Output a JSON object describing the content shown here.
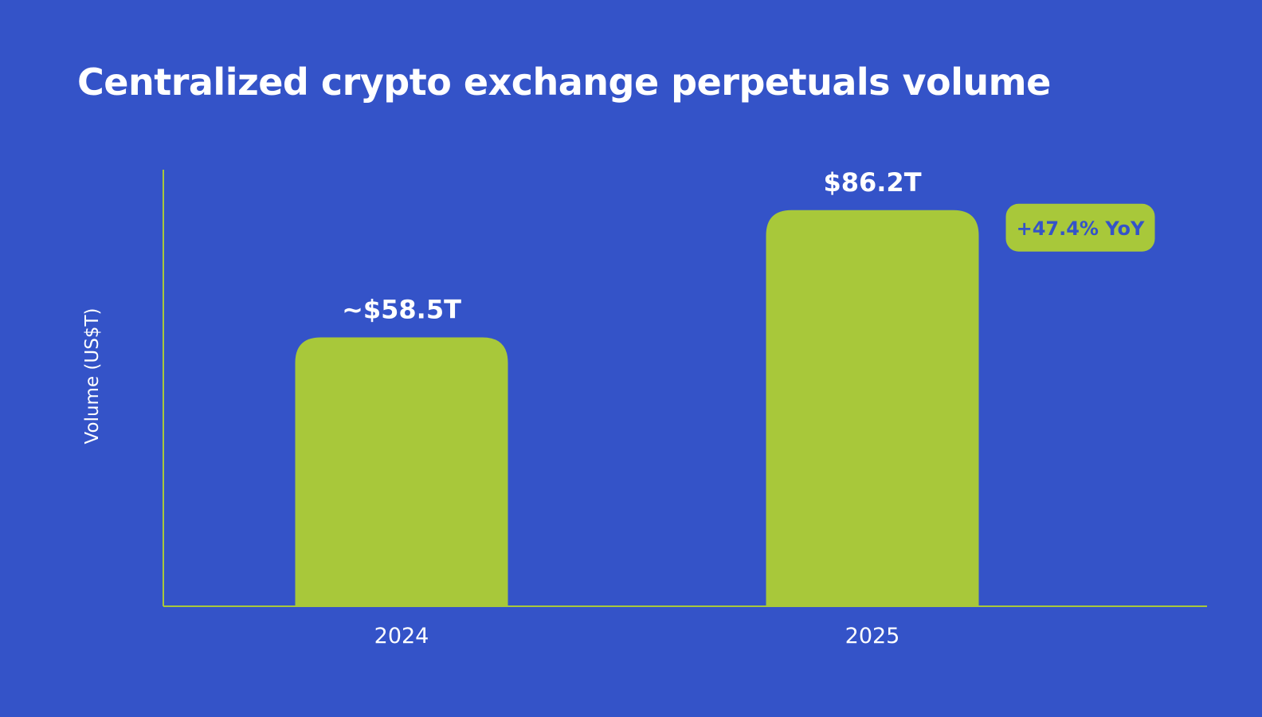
{
  "chart_data": {
    "type": "bar",
    "title": "Centralized crypto exchange perpetuals volume",
    "ylabel": "Volume (US$T)",
    "xlabel": "",
    "categories": [
      "2024",
      "2025"
    ],
    "values": [
      58.5,
      86.2
    ],
    "data_labels": [
      "~$58.5T",
      "$86.2T"
    ],
    "ylim": [
      0,
      95
    ],
    "grid": false,
    "annotation": {
      "text": "+47.4% YoY",
      "category": "2025"
    }
  },
  "colors": {
    "background": "#3453c8",
    "bar": "#a8c83a",
    "axis": "#a8c83a",
    "text": "#ffffff",
    "badge_text": "#3453c8"
  }
}
